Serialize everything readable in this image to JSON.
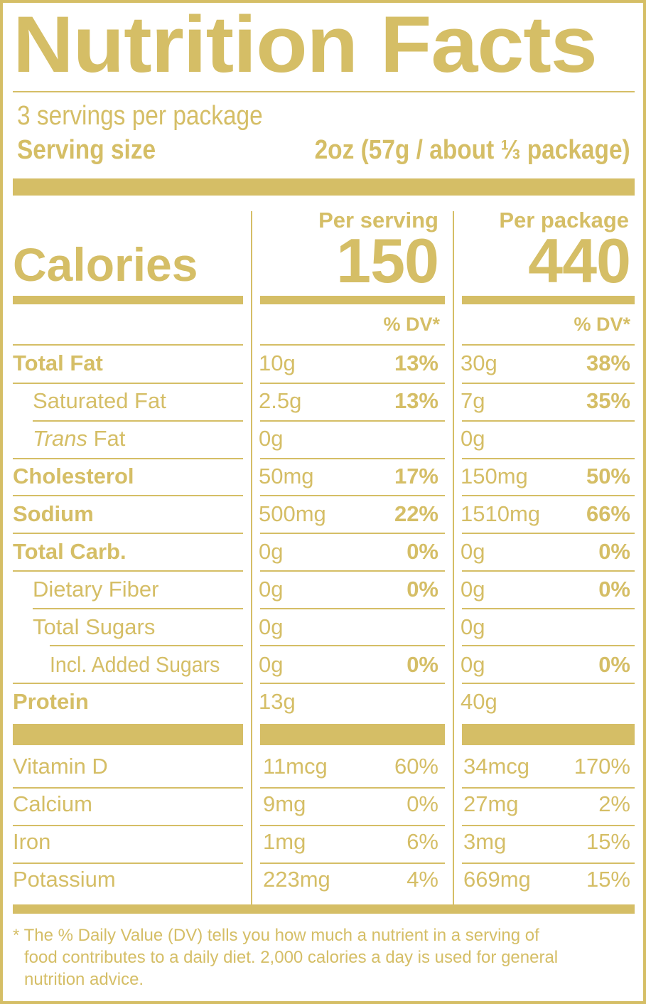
{
  "title": "Nutrition Facts",
  "servings_per_package": "3 servings per package",
  "serving_size_label": "Serving size",
  "serving_size_value": "2oz (57g / about ⅓ package)",
  "columns": {
    "per_serving": "Per serving",
    "per_package": "Per package"
  },
  "calories": {
    "label": "Calories",
    "per_serving": "150",
    "per_package": "440"
  },
  "dv_header": "% DV*",
  "nutrients": [
    {
      "name": "Total Fat",
      "serving_amount": "10g",
      "serving_dv": "13%",
      "package_amount": "30g",
      "package_dv": "38%"
    },
    {
      "name": "Saturated Fat",
      "serving_amount": "2.5g",
      "serving_dv": "13%",
      "package_amount": "7g",
      "package_dv": "35%"
    },
    {
      "name_italic": "Trans",
      "name": " Fat",
      "serving_amount": "0g",
      "serving_dv": "",
      "package_amount": "0g",
      "package_dv": ""
    },
    {
      "name": "Cholesterol",
      "serving_amount": "50mg",
      "serving_dv": "17%",
      "package_amount": "150mg",
      "package_dv": "50%"
    },
    {
      "name": "Sodium",
      "serving_amount": "500mg",
      "serving_dv": "22%",
      "package_amount": "1510mg",
      "package_dv": "66%"
    },
    {
      "name": "Total Carb.",
      "serving_amount": "0g",
      "serving_dv": "0%",
      "package_amount": "0g",
      "package_dv": "0%"
    },
    {
      "name": "Dietary Fiber",
      "serving_amount": "0g",
      "serving_dv": "0%",
      "package_amount": "0g",
      "package_dv": "0%"
    },
    {
      "name": "Total Sugars",
      "serving_amount": "0g",
      "serving_dv": "",
      "package_amount": "0g",
      "package_dv": ""
    },
    {
      "name": "Incl. Added Sugars",
      "serving_amount": "0g",
      "serving_dv": "0%",
      "package_amount": "0g",
      "package_dv": "0%"
    },
    {
      "name": "Protein",
      "serving_amount": "13g",
      "serving_dv": "",
      "package_amount": "40g",
      "package_dv": ""
    }
  ],
  "vitamins": [
    {
      "name": "Vitamin D",
      "serving_amount": "11mcg",
      "serving_dv": "60%",
      "package_amount": "34mcg",
      "package_dv": "170%"
    },
    {
      "name": "Calcium",
      "serving_amount": "9mg",
      "serving_dv": "0%",
      "package_amount": "27mg",
      "package_dv": "2%"
    },
    {
      "name": "Iron",
      "serving_amount": "1mg",
      "serving_dv": "6%",
      "package_amount": "3mg",
      "package_dv": "15%"
    },
    {
      "name": "Potassium",
      "serving_amount": "223mg",
      "serving_dv": "4%",
      "package_amount": "669mg",
      "package_dv": "15%"
    }
  ],
  "footnote": {
    "line1": "* The % Daily Value (DV) tells you how much a nutrient in a serving of",
    "line2": "food contributes to a daily diet. 2,000 calories a day is used for general",
    "line3": "nutrition advice."
  },
  "colors": {
    "ink": "#D5BE66",
    "background": "#FFFFFF"
  }
}
